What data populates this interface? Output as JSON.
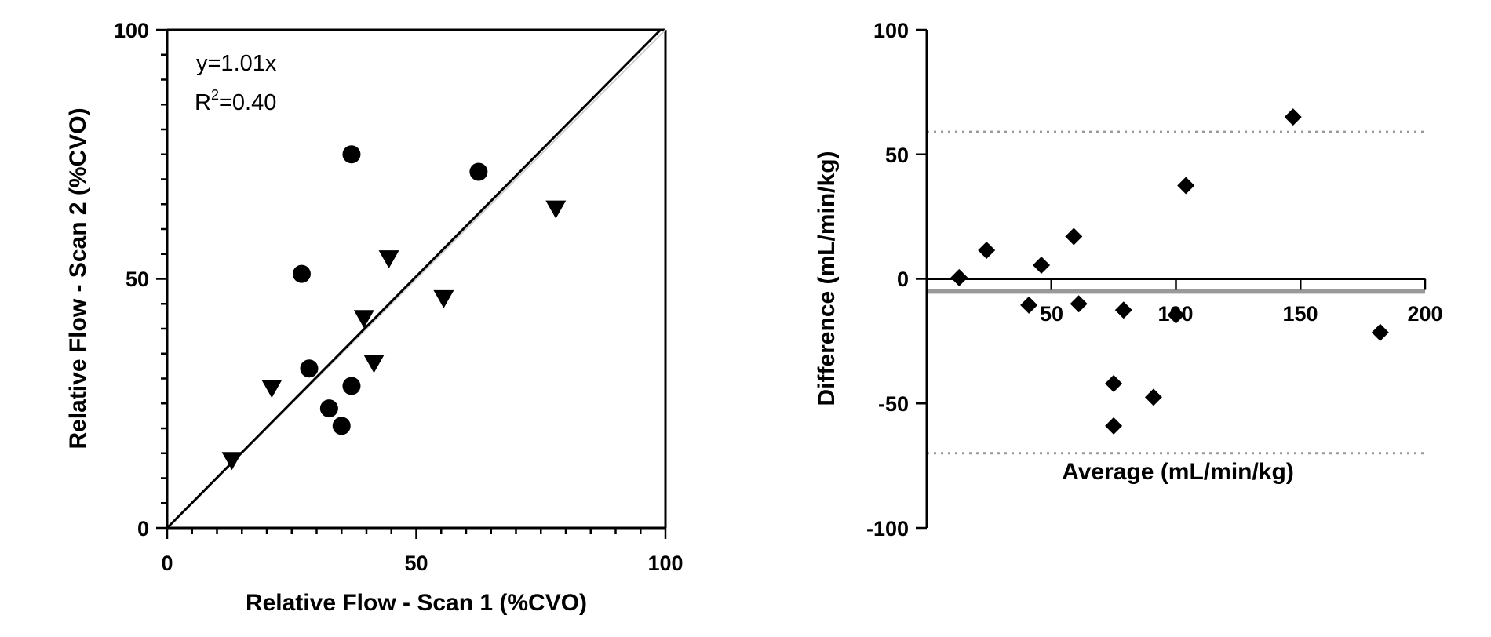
{
  "chart_data": [
    {
      "type": "scatter",
      "title": "",
      "xlabel": "Relative Flow - Scan 1 (%CVO)",
      "ylabel": "Relative Flow - Scan 2 (%CVO)",
      "xlim": [
        0,
        100
      ],
      "ylim": [
        0,
        100
      ],
      "xticks": [
        0,
        50,
        100
      ],
      "yticks": [
        0,
        50,
        100
      ],
      "tick_labels_x": [
        "0",
        "50",
        "100"
      ],
      "tick_labels_y": [
        "0",
        "50",
        "100"
      ],
      "annotation_eq": "y=1.01x",
      "annotation_r2_prefix": "R",
      "annotation_r2_sup": "2",
      "annotation_r2_value": "=0.40",
      "fit_slope": 1.01,
      "series": [
        {
          "name": "circles",
          "marker": "circle",
          "points": [
            {
              "x": 37,
              "y": 75
            },
            {
              "x": 62.5,
              "y": 71.5
            },
            {
              "x": 27,
              "y": 51
            },
            {
              "x": 28.5,
              "y": 32
            },
            {
              "x": 37,
              "y": 28.5
            },
            {
              "x": 32.5,
              "y": 24
            },
            {
              "x": 35,
              "y": 20.5
            }
          ]
        },
        {
          "name": "triangles",
          "marker": "triangle-down",
          "points": [
            {
              "x": 78,
              "y": 64
            },
            {
              "x": 44.5,
              "y": 54
            },
            {
              "x": 55.5,
              "y": 46
            },
            {
              "x": 39.5,
              "y": 42
            },
            {
              "x": 41.5,
              "y": 33
            },
            {
              "x": 21,
              "y": 28
            },
            {
              "x": 13,
              "y": 13.5
            }
          ]
        }
      ]
    },
    {
      "type": "scatter",
      "title": "",
      "xlabel": "Average (mL/min/kg)",
      "ylabel": "Difference (mL/min/kg)",
      "xlim": [
        0,
        200
      ],
      "ylim": [
        -100,
        100
      ],
      "xticks": [
        50,
        100,
        150,
        200
      ],
      "yticks": [
        -100,
        -50,
        0,
        50,
        100
      ],
      "tick_labels_x": [
        "50",
        "100",
        "150",
        "200"
      ],
      "tick_labels_y": [
        "-100",
        "-50",
        "0",
        "50",
        "100"
      ],
      "bias": -5,
      "upper_loa": 59,
      "lower_loa": -70,
      "series": [
        {
          "name": "differences",
          "marker": "diamond",
          "points": [
            {
              "x": 13,
              "y": 0.5
            },
            {
              "x": 24,
              "y": 11.5
            },
            {
              "x": 41,
              "y": -10.5
            },
            {
              "x": 46,
              "y": 5.5
            },
            {
              "x": 59,
              "y": 17
            },
            {
              "x": 61,
              "y": -10
            },
            {
              "x": 79,
              "y": -12.5
            },
            {
              "x": 75,
              "y": -42
            },
            {
              "x": 75,
              "y": -59
            },
            {
              "x": 91,
              "y": -47.5
            },
            {
              "x": 100,
              "y": -14.5
            },
            {
              "x": 104,
              "y": 37.5
            },
            {
              "x": 147,
              "y": 65
            },
            {
              "x": 182,
              "y": -21.5
            }
          ]
        }
      ]
    }
  ]
}
